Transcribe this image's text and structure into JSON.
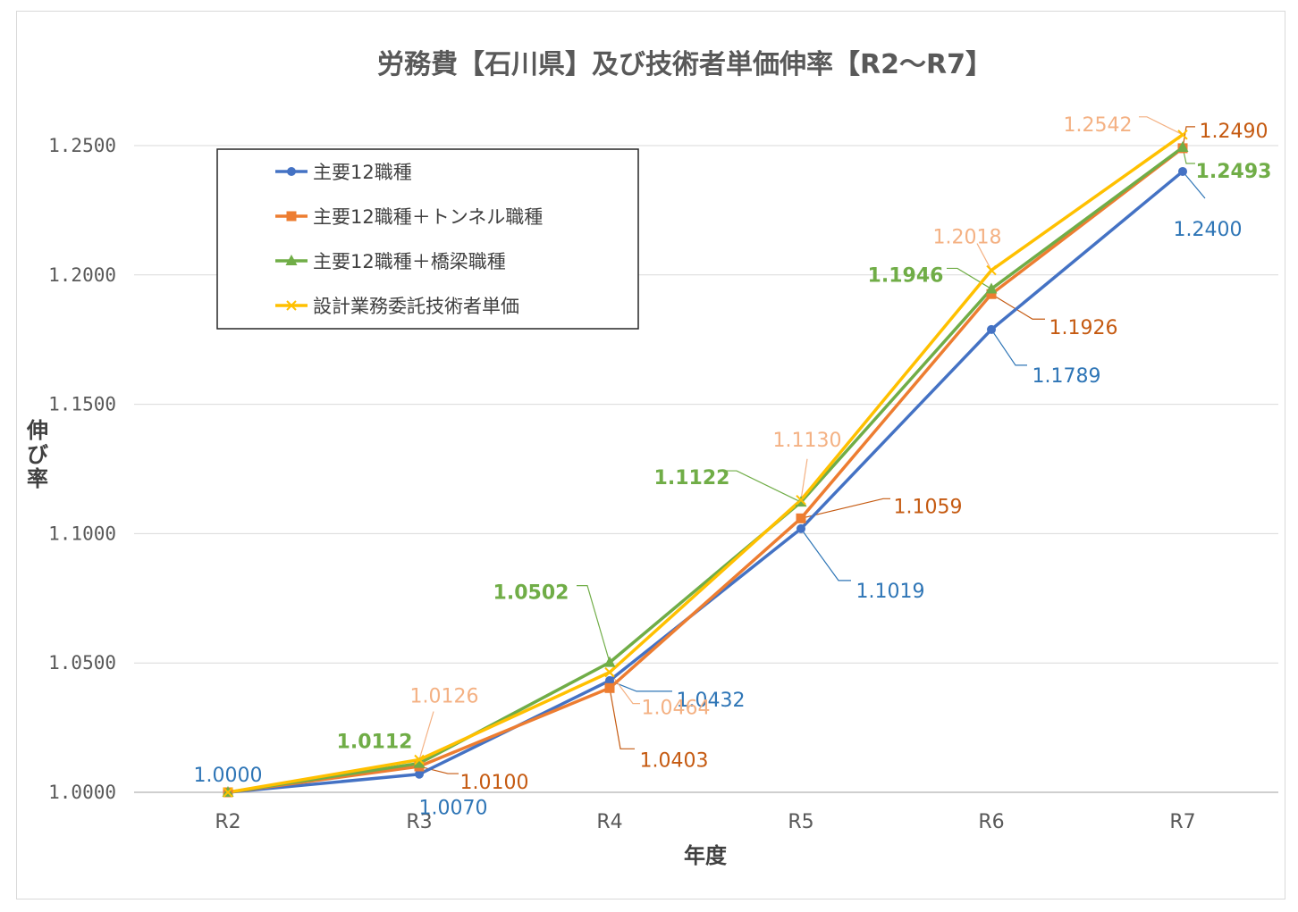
{
  "chart_data": {
    "type": "line",
    "title": "労務費【石川県】及び技術者単価伸率【R2～R7】",
    "xlabel": "年度",
    "ylabel": "伸び率",
    "categories": [
      "R2",
      "R3",
      "R4",
      "R5",
      "R6",
      "R7"
    ],
    "ylim": [
      1.0,
      1.25
    ],
    "yticks": [
      "1.0000",
      "1.0500",
      "1.1000",
      "1.1500",
      "1.2000",
      "1.2500"
    ],
    "grid": true,
    "legend_position": "top-left",
    "series": [
      {
        "name": "主要12職種",
        "color": "#4472c4",
        "label_color": "#2e75b6",
        "marker": "circle",
        "values": [
          1.0,
          1.007,
          1.0432,
          1.1019,
          1.1789,
          1.24
        ],
        "labels": [
          "1.0000",
          "1.0070",
          "1.0432",
          "1.1019",
          "1.1789",
          "1.2400"
        ]
      },
      {
        "name": "主要12職種＋トンネル職種",
        "color": "#ed7d31",
        "label_color": "#c55a11",
        "marker": "square",
        "values": [
          1.0,
          1.01,
          1.0403,
          1.1059,
          1.1926,
          1.249
        ],
        "labels": [
          "",
          "1.0100",
          "1.0403",
          "1.1059",
          "1.1926",
          "1.2490"
        ]
      },
      {
        "name": "主要12職種＋橋梁職種",
        "color": "#70ad47",
        "label_color": "#70ad47",
        "marker": "triangle",
        "values": [
          1.0,
          1.0112,
          1.0502,
          1.1122,
          1.1946,
          1.2493
        ],
        "labels": [
          "",
          "1.0112",
          "1.0502",
          "1.1122",
          "1.1946",
          "1.2493"
        ]
      },
      {
        "name": "設計業務委託技術者単価",
        "color": "#ffc000",
        "label_color": "#f4b183",
        "marker": "x",
        "values": [
          1.0,
          1.0126,
          1.0464,
          1.113,
          1.2018,
          1.2542
        ],
        "labels": [
          "",
          "1.0126",
          "1.0464",
          "1.1130",
          "1.2018",
          "1.2542"
        ]
      }
    ]
  }
}
